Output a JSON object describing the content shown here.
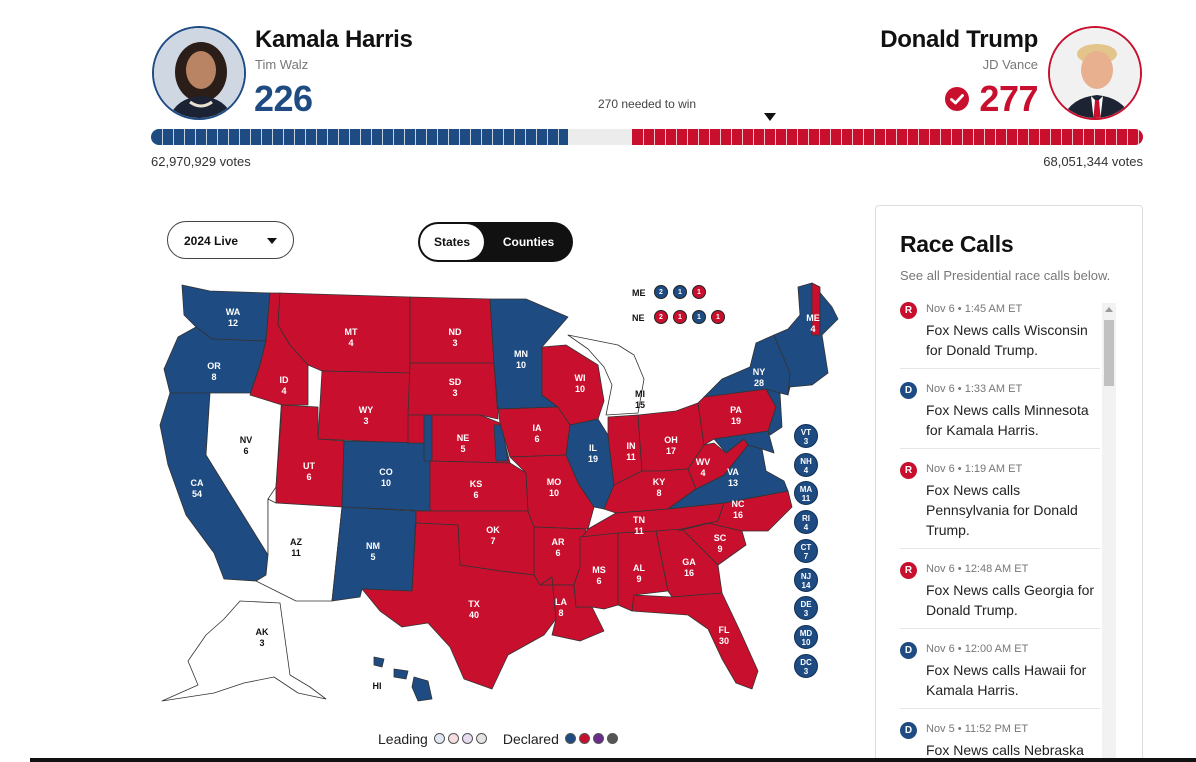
{
  "harris": {
    "name": "Kamala Harris",
    "running_mate": "Tim Walz",
    "electoral_votes": "226",
    "popular_votes": "62,970,929 votes",
    "ev_value": 226,
    "color": "#1d4b82"
  },
  "trump": {
    "name": "Donald Trump",
    "running_mate": "JD Vance",
    "electoral_votes": "277",
    "popular_votes": "68,051,344 votes",
    "ev_value": 277,
    "color": "#c8102e",
    "winner": true
  },
  "threshold": {
    "label": "270 needed to win",
    "value": 270,
    "total": 538
  },
  "controls": {
    "year": "2024 Live",
    "views": [
      "States",
      "Counties"
    ],
    "active_view": "States"
  },
  "map": {
    "states": [
      {
        "abbr": "WA",
        "ev": "12",
        "party": "D"
      },
      {
        "abbr": "OR",
        "ev": "8",
        "party": "D"
      },
      {
        "abbr": "CA",
        "ev": "54",
        "party": "D"
      },
      {
        "abbr": "NV",
        "ev": "6",
        "party": "none"
      },
      {
        "abbr": "ID",
        "ev": "4",
        "party": "R"
      },
      {
        "abbr": "MT",
        "ev": "4",
        "party": "R"
      },
      {
        "abbr": "WY",
        "ev": "3",
        "party": "R"
      },
      {
        "abbr": "UT",
        "ev": "6",
        "party": "R"
      },
      {
        "abbr": "AZ",
        "ev": "11",
        "party": "none"
      },
      {
        "abbr": "CO",
        "ev": "10",
        "party": "D"
      },
      {
        "abbr": "NM",
        "ev": "5",
        "party": "D"
      },
      {
        "abbr": "ND",
        "ev": "3",
        "party": "R"
      },
      {
        "abbr": "SD",
        "ev": "3",
        "party": "R"
      },
      {
        "abbr": "NE",
        "ev": "5",
        "party": "R"
      },
      {
        "abbr": "KS",
        "ev": "6",
        "party": "R"
      },
      {
        "abbr": "OK",
        "ev": "7",
        "party": "R"
      },
      {
        "abbr": "TX",
        "ev": "40",
        "party": "R"
      },
      {
        "abbr": "MN",
        "ev": "10",
        "party": "D"
      },
      {
        "abbr": "IA",
        "ev": "6",
        "party": "R"
      },
      {
        "abbr": "MO",
        "ev": "10",
        "party": "R"
      },
      {
        "abbr": "AR",
        "ev": "6",
        "party": "R"
      },
      {
        "abbr": "LA",
        "ev": "8",
        "party": "R"
      },
      {
        "abbr": "WI",
        "ev": "10",
        "party": "R"
      },
      {
        "abbr": "IL",
        "ev": "19",
        "party": "D"
      },
      {
        "abbr": "MI",
        "ev": "15",
        "party": "none"
      },
      {
        "abbr": "IN",
        "ev": "11",
        "party": "R"
      },
      {
        "abbr": "OH",
        "ev": "17",
        "party": "R"
      },
      {
        "abbr": "KY",
        "ev": "8",
        "party": "R"
      },
      {
        "abbr": "TN",
        "ev": "11",
        "party": "R"
      },
      {
        "abbr": "MS",
        "ev": "6",
        "party": "R"
      },
      {
        "abbr": "AL",
        "ev": "9",
        "party": "R"
      },
      {
        "abbr": "GA",
        "ev": "16",
        "party": "R"
      },
      {
        "abbr": "FL",
        "ev": "30",
        "party": "R"
      },
      {
        "abbr": "SC",
        "ev": "9",
        "party": "R"
      },
      {
        "abbr": "NC",
        "ev": "16",
        "party": "R"
      },
      {
        "abbr": "VA",
        "ev": "13",
        "party": "D"
      },
      {
        "abbr": "WV",
        "ev": "4",
        "party": "R"
      },
      {
        "abbr": "PA",
        "ev": "19",
        "party": "R"
      },
      {
        "abbr": "NY",
        "ev": "28",
        "party": "D"
      },
      {
        "abbr": "ME",
        "ev": "4",
        "party": "D"
      },
      {
        "abbr": "AK",
        "ev": "3",
        "party": "none"
      },
      {
        "abbr": "HI",
        "ev": "",
        "party": "D"
      }
    ],
    "split_states": {
      "me": {
        "label": "ME",
        "districts": [
          {
            "v": "2",
            "p": "D"
          },
          {
            "v": "1",
            "p": "D"
          },
          {
            "v": "1",
            "p": "R"
          }
        ]
      },
      "ne": {
        "label": "NE",
        "districts": [
          {
            "v": "2",
            "p": "R"
          },
          {
            "v": "1",
            "p": "R"
          },
          {
            "v": "1",
            "p": "D"
          },
          {
            "v": "1",
            "p": "R"
          }
        ]
      }
    },
    "small_states": [
      {
        "abbr": "VT",
        "ev": "3"
      },
      {
        "abbr": "NH",
        "ev": "4"
      },
      {
        "abbr": "MA",
        "ev": "11"
      },
      {
        "abbr": "RI",
        "ev": "4"
      },
      {
        "abbr": "CT",
        "ev": "7"
      },
      {
        "abbr": "NJ",
        "ev": "14"
      },
      {
        "abbr": "DE",
        "ev": "3"
      },
      {
        "abbr": "MD",
        "ev": "10"
      },
      {
        "abbr": "DC",
        "ev": "3"
      }
    ],
    "colors": {
      "dem": "#1d4b82",
      "rep": "#c8102e",
      "undecided": "#ffffff"
    }
  },
  "legend": {
    "leading_label": "Leading",
    "declared_label": "Declared",
    "leading_colors": [
      "#dfe8f3",
      "#f6dde0",
      "#e7dcef",
      "#e4e4e4"
    ],
    "declared_colors": [
      "#1d4b82",
      "#c8102e",
      "#6b2a8c",
      "#555555"
    ]
  },
  "race_calls": {
    "title": "Race Calls",
    "subtitle": "See all Presidential race calls below.",
    "items": [
      {
        "party": "R",
        "time": "Nov 6 • 1:45 AM ET",
        "text": "Fox News calls Wisconsin for Donald Trump."
      },
      {
        "party": "D",
        "time": "Nov 6 • 1:33 AM ET",
        "text": "Fox News calls Minnesota for Kamala Harris."
      },
      {
        "party": "R",
        "time": "Nov 6 • 1:19 AM ET",
        "text": "Fox News calls Pennsylvania for Donald Trump."
      },
      {
        "party": "R",
        "time": "Nov 6 • 12:48 AM ET",
        "text": "Fox News calls Georgia for Donald Trump."
      },
      {
        "party": "D",
        "time": "Nov 6 • 12:00 AM ET",
        "text": "Fox News calls Hawaii for Kamala Harris."
      },
      {
        "party": "D",
        "time": "Nov 5 • 11:52 PM ET",
        "text": "Fox News calls Nebraska"
      }
    ]
  }
}
